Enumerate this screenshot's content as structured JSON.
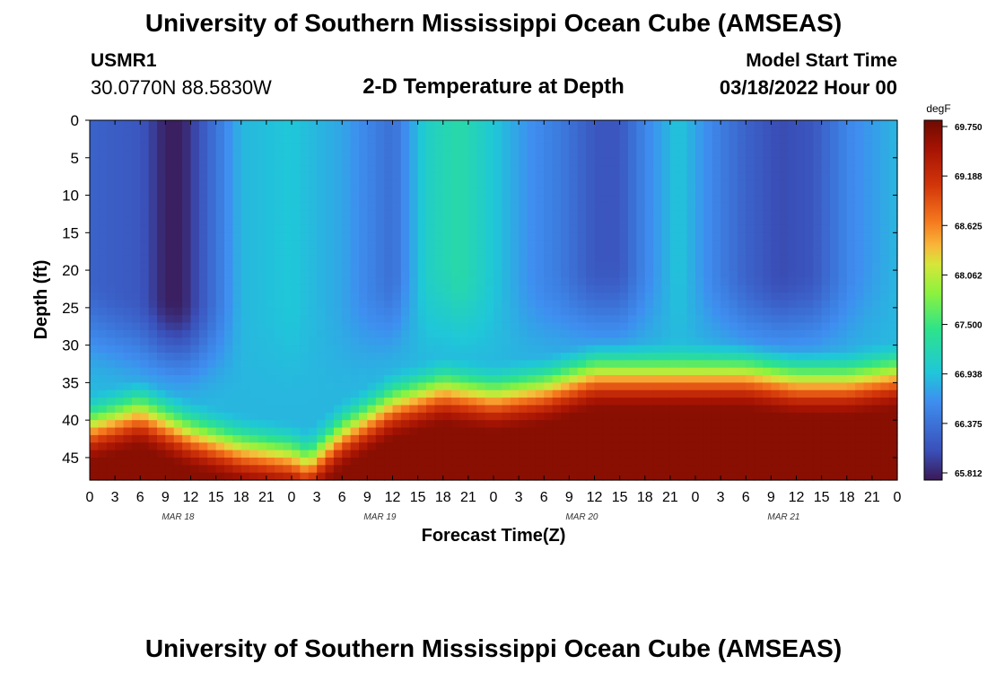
{
  "header": {
    "title": "University of Southern Mississippi Ocean Cube (AMSEAS)",
    "station_id": "USMR1",
    "station_coords": "30.0770N  88.5830W",
    "plot_title": "2-D Temperature at Depth",
    "model_start_label": "Model Start Time",
    "model_start_value": "03/18/2022 Hour 00"
  },
  "footer": {
    "title": "University of Southern Mississippi Ocean Cube (AMSEAS)"
  },
  "chart_data": {
    "type": "heatmap",
    "title": "2-D Temperature at Depth",
    "xlabel": "Forecast Time(Z)",
    "ylabel": "Depth (ft)",
    "x_unit": "hours since model start",
    "xlim": [
      0,
      96
    ],
    "ylim": [
      0,
      48
    ],
    "y_inverted": true,
    "x_tick_labels": [
      "0",
      "3",
      "6",
      "9",
      "12",
      "15",
      "18",
      "21",
      "0",
      "3",
      "6",
      "9",
      "12",
      "15",
      "18",
      "21",
      "0",
      "3",
      "6",
      "9",
      "12",
      "15",
      "18",
      "21",
      "0",
      "3",
      "6",
      "9",
      "12",
      "15",
      "18",
      "21",
      "0"
    ],
    "day_labels": [
      {
        "label": "MAR 18",
        "hour": 10.5
      },
      {
        "label": "MAR 19",
        "hour": 34.5
      },
      {
        "label": "MAR 20",
        "hour": 58.5
      },
      {
        "label": "MAR 21",
        "hour": 82.5
      }
    ],
    "y_ticks": [
      0,
      5,
      10,
      15,
      20,
      25,
      30,
      35,
      40,
      45
    ],
    "colorbar": {
      "unit": "degF",
      "min": 65.812,
      "max": 69.75,
      "tick_labels": [
        "69.750",
        "69.188",
        "68.625",
        "68.062",
        "67.500",
        "66.938",
        "66.375",
        "65.812"
      ]
    },
    "surface_temperature_by_hour": {
      "hours": [
        0,
        6,
        9,
        11,
        14,
        18,
        24,
        30,
        36,
        40,
        44,
        48,
        52,
        56,
        60,
        63,
        66,
        70,
        74,
        78,
        82,
        86,
        90,
        96
      ],
      "values_degF": [
        66.3,
        66.2,
        65.85,
        65.85,
        66.3,
        66.9,
        67.0,
        66.8,
        66.4,
        67.1,
        67.3,
        67.0,
        66.7,
        66.5,
        66.2,
        66.2,
        66.6,
        67.0,
        66.6,
        66.3,
        66.1,
        66.2,
        66.6,
        66.9
      ]
    },
    "mixed_layer_depth_ft_by_hour": {
      "hours": [
        0,
        6,
        12,
        18,
        24,
        30,
        36,
        42,
        48,
        54,
        60,
        66,
        72,
        78,
        84,
        90,
        96
      ],
      "values": [
        35,
        37,
        38,
        37,
        38,
        37,
        34,
        33,
        34,
        34,
        33,
        33,
        33,
        34,
        34,
        34,
        31
      ]
    },
    "bottom_layer_depth_ft_by_hour": {
      "hours": [
        0,
        6,
        12,
        18,
        24,
        26,
        30,
        36,
        42,
        48,
        54,
        60,
        66,
        72,
        78,
        84,
        90,
        96
      ],
      "values": [
        42,
        40,
        43,
        45,
        46,
        47,
        43,
        39,
        37,
        38,
        37,
        35,
        35,
        35,
        35,
        36,
        36,
        35
      ]
    },
    "bottom_temperature_degF": 69.6
  }
}
